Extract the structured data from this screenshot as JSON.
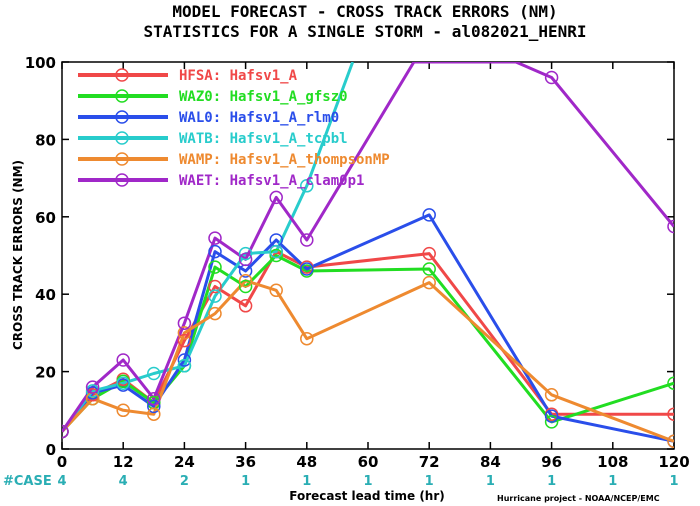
{
  "chart_data": {
    "type": "line",
    "title": "MODEL FORECAST - CROSS TRACK ERRORS (NM)",
    "subtitle": "STATISTICS FOR A SINGLE STORM - al082021_HENRI",
    "xlabel": "Forecast lead time (hr)",
    "ylabel": "CROSS TRACK ERRORS (NM)",
    "xlim": [
      0,
      120
    ],
    "ylim": [
      0,
      100
    ],
    "x_ticks": [
      0,
      12,
      24,
      36,
      48,
      60,
      72,
      84,
      96,
      108,
      120
    ],
    "y_ticks": [
      0,
      20,
      40,
      60,
      80,
      100
    ],
    "case_label": "#CASE",
    "case_x": [
      0,
      12,
      24,
      36,
      48,
      60,
      72,
      84,
      96,
      108,
      120
    ],
    "case_counts": [
      "4",
      "4",
      "2",
      "1",
      "1",
      "1",
      "1",
      "1",
      "1",
      "1",
      "1"
    ],
    "credit": "Hurricane project - NOAA/NCEP/EMC",
    "series": [
      {
        "name": "HFSA: Hafsv1_A",
        "color": "#f04848",
        "x": [
          0,
          6,
          12,
          18,
          24,
          30,
          36,
          42,
          48,
          72,
          96,
          120
        ],
        "values": [
          4.5,
          14,
          18,
          12,
          28,
          42,
          37,
          51,
          47,
          50.5,
          9,
          9
        ]
      },
      {
        "name": "WAZ0: Hafsv1_A_gfsz0",
        "color": "#22dd22",
        "x": [
          0,
          6,
          12,
          18,
          24,
          30,
          36,
          42,
          48,
          72,
          96,
          120
        ],
        "values": [
          4.5,
          13,
          17.5,
          12,
          21.5,
          47,
          42,
          50,
          46,
          46.5,
          7,
          17
        ]
      },
      {
        "name": "WAL0: Hafsv1_A_rlm0",
        "color": "#2a4eea",
        "x": [
          0,
          6,
          12,
          18,
          24,
          30,
          36,
          42,
          48,
          72,
          96,
          120
        ],
        "values": [
          4.5,
          14.5,
          16.5,
          11,
          23,
          51,
          46,
          54,
          46.5,
          60.5,
          8.5,
          2
        ]
      },
      {
        "name": "WATB: Hafsv1_A_tcpbl",
        "color": "#28cccc",
        "x": [
          0,
          6,
          12,
          18,
          24,
          30,
          36,
          42,
          48,
          57
        ],
        "values": [
          4.5,
          15,
          17,
          19.5,
          21.5,
          39.5,
          50.5,
          51,
          68,
          100
        ]
      },
      {
        "name": "WAMP: Hafsv1_A_thompsonMP",
        "color": "#ee8a30",
        "x": [
          0,
          6,
          12,
          18,
          24,
          30,
          36,
          42,
          48,
          72,
          96,
          120
        ],
        "values": [
          4.5,
          13,
          10,
          9,
          30,
          35,
          43.5,
          41,
          28.5,
          43,
          14,
          2
        ]
      },
      {
        "name": "WAET: Hafsv1_A_clam0p1",
        "color": "#a028c8",
        "x": [
          0,
          6,
          12,
          18,
          24,
          30,
          36,
          42,
          48,
          69,
          89,
          96,
          120
        ],
        "values": [
          4.5,
          16,
          23,
          13,
          32.5,
          54.5,
          49,
          65,
          54,
          100,
          100,
          96,
          57.5
        ]
      }
    ]
  }
}
